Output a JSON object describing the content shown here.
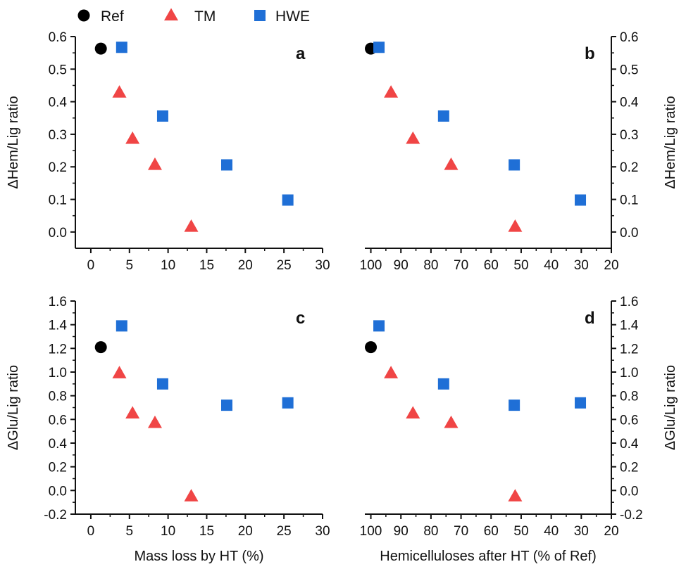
{
  "legend": [
    {
      "name": "Ref",
      "marker": "circle",
      "color": "#000000"
    },
    {
      "name": "TM",
      "marker": "triangle",
      "color": "#f04545"
    },
    {
      "name": "HWE",
      "marker": "square",
      "color": "#1f6fd6"
    }
  ],
  "chart_data": [
    {
      "type": "scatter",
      "panel_label": "a",
      "xlabel": "",
      "ylabel": "ΔHem/Lig ratio",
      "y_axis_side": "left",
      "xlim": [
        -2,
        30
      ],
      "ylim": [
        -0.05,
        0.6
      ],
      "x_ticks": [
        0,
        5,
        10,
        15,
        20,
        25,
        30
      ],
      "y_ticks": [
        0.0,
        0.1,
        0.2,
        0.3,
        0.4,
        0.5,
        0.6
      ],
      "y_tick_labels": [
        "0.0",
        "0.1",
        "0.2",
        "0.3",
        "0.4",
        "0.5",
        "0.6"
      ],
      "series": [
        {
          "name": "Ref",
          "points": [
            [
              1.3,
              0.563
            ]
          ]
        },
        {
          "name": "TM",
          "points": [
            [
              3.7,
              0.428
            ],
            [
              5.4,
              0.286
            ],
            [
              8.3,
              0.206
            ],
            [
              13.0,
              0.016
            ]
          ]
        },
        {
          "name": "HWE",
          "points": [
            [
              4.0,
              0.567
            ],
            [
              9.3,
              0.356
            ],
            [
              17.6,
              0.206
            ],
            [
              25.5,
              0.098
            ]
          ]
        }
      ]
    },
    {
      "type": "scatter",
      "panel_label": "b",
      "xlabel": "",
      "ylabel": "ΔHem/Lig ratio",
      "y_axis_side": "right",
      "x_reversed": true,
      "xlim": [
        102,
        20
      ],
      "ylim": [
        -0.05,
        0.6
      ],
      "x_ticks": [
        100,
        90,
        80,
        70,
        60,
        50,
        40,
        30,
        20
      ],
      "y_ticks": [
        0.0,
        0.1,
        0.2,
        0.3,
        0.4,
        0.5,
        0.6
      ],
      "y_tick_labels": [
        "0.0",
        "0.1",
        "0.2",
        "0.3",
        "0.4",
        "0.5",
        "0.6"
      ],
      "series": [
        {
          "name": "Ref",
          "points": [
            [
              100,
              0.563
            ]
          ]
        },
        {
          "name": "TM",
          "points": [
            [
              93.3,
              0.428
            ],
            [
              86.0,
              0.286
            ],
            [
              73.3,
              0.206
            ],
            [
              52.0,
              0.016
            ]
          ]
        },
        {
          "name": "HWE",
          "points": [
            [
              97.3,
              0.567
            ],
            [
              75.8,
              0.356
            ],
            [
              52.3,
              0.206
            ],
            [
              30.3,
              0.098
            ]
          ]
        }
      ]
    },
    {
      "type": "scatter",
      "panel_label": "c",
      "xlabel": "Mass loss by HT (%)",
      "ylabel": "ΔGlu/Lig ratio",
      "y_axis_side": "left",
      "xlim": [
        -2,
        30
      ],
      "ylim": [
        -0.2,
        1.6
      ],
      "x_ticks": [
        0,
        5,
        10,
        15,
        20,
        25,
        30
      ],
      "y_ticks": [
        -0.2,
        0.0,
        0.2,
        0.4,
        0.6,
        0.8,
        1.0,
        1.2,
        1.4,
        1.6
      ],
      "y_tick_labels": [
        "-0.2",
        "0.0",
        "0.2",
        "0.4",
        "0.6",
        "0.8",
        "1.0",
        "1.2",
        "1.4",
        "1.6"
      ],
      "series": [
        {
          "name": "Ref",
          "points": [
            [
              1.3,
              1.21
            ]
          ]
        },
        {
          "name": "TM",
          "points": [
            [
              3.7,
              0.99
            ],
            [
              5.4,
              0.65
            ],
            [
              8.3,
              0.57
            ],
            [
              13.0,
              -0.05
            ]
          ]
        },
        {
          "name": "HWE",
          "points": [
            [
              4.0,
              1.39
            ],
            [
              9.3,
              0.9
            ],
            [
              17.6,
              0.72
            ],
            [
              25.5,
              0.74
            ]
          ]
        }
      ]
    },
    {
      "type": "scatter",
      "panel_label": "d",
      "xlabel": "Hemicelluloses after HT (% of Ref)",
      "ylabel": "ΔGlu/Lig ratio",
      "y_axis_side": "right",
      "x_reversed": true,
      "xlim": [
        102,
        20
      ],
      "ylim": [
        -0.2,
        1.6
      ],
      "x_ticks": [
        100,
        90,
        80,
        70,
        60,
        50,
        40,
        30,
        20
      ],
      "y_ticks": [
        -0.2,
        0.0,
        0.2,
        0.4,
        0.6,
        0.8,
        1.0,
        1.2,
        1.4,
        1.6
      ],
      "y_tick_labels": [
        "-0.2",
        "0.0",
        "0.2",
        "0.4",
        "0.6",
        "0.8",
        "1.0",
        "1.2",
        "1.4",
        "1.6"
      ],
      "series": [
        {
          "name": "Ref",
          "points": [
            [
              100,
              1.21
            ]
          ]
        },
        {
          "name": "TM",
          "points": [
            [
              93.3,
              0.99
            ],
            [
              86.0,
              0.65
            ],
            [
              73.3,
              0.57
            ],
            [
              52.0,
              -0.05
            ]
          ]
        },
        {
          "name": "HWE",
          "points": [
            [
              97.3,
              1.39
            ],
            [
              75.8,
              0.9
            ],
            [
              52.3,
              0.72
            ],
            [
              30.3,
              0.74
            ]
          ]
        }
      ]
    }
  ]
}
